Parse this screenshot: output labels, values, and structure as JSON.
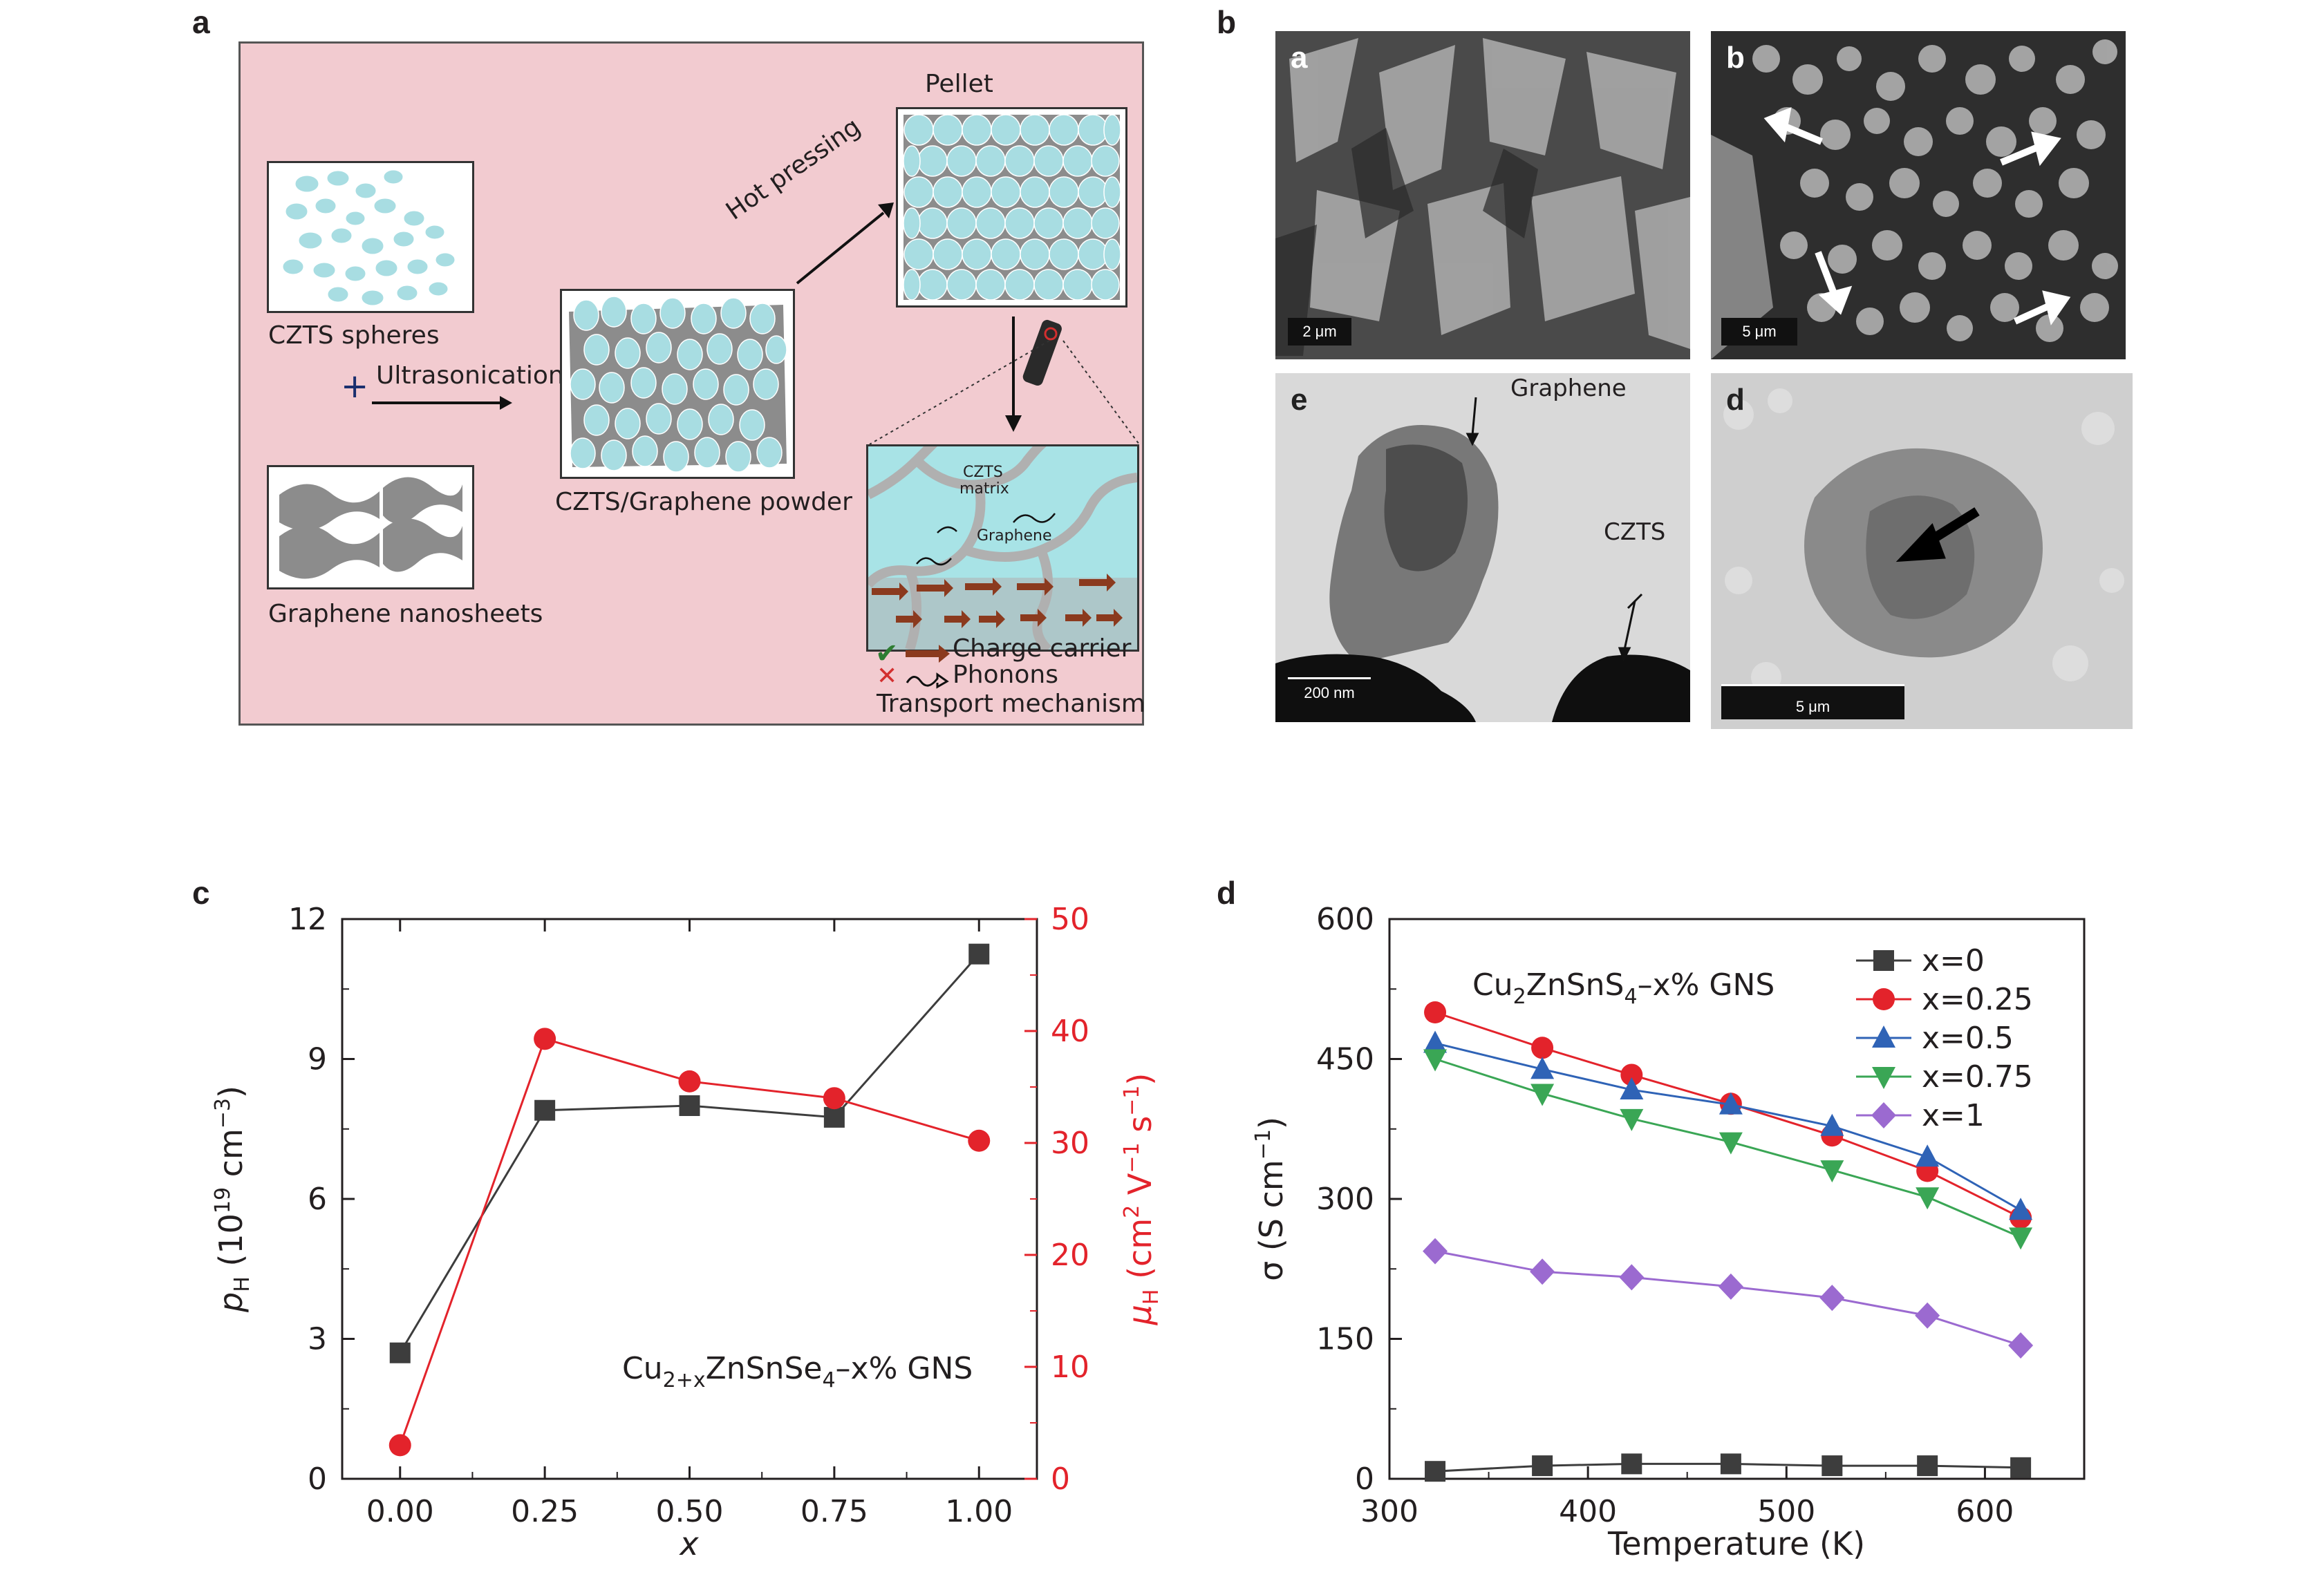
{
  "panel_letters": {
    "a": "a",
    "b": "b",
    "c": "c",
    "d": "d"
  },
  "schematic": {
    "czts_spheres": "CZTS spheres",
    "plus": "+",
    "ultrasonication": "Ultrasonication",
    "graphene_nanosheets": "Graphene nanosheets",
    "composite_powder": "CZTS/Graphene powder",
    "hot_pressing": "Hot pressing",
    "pellet": "Pellet",
    "czts_matrix_line1": "CZTS",
    "czts_matrix_line2": "matrix",
    "graphene_label": "Graphene",
    "charge_carrier": "Charge carrier",
    "phonons": "Phonons",
    "transport_mechanism": "Transport mechanism",
    "colors": {
      "background": "#f2cbd0",
      "sphere": "#a8dde2",
      "graphene": "#8c8c8c",
      "arrow": "#8b3a1e",
      "check": "#2e7d32",
      "cross": "#d32f2f"
    }
  },
  "micrographs": {
    "a": {
      "letter": "a",
      "scale": "2 μm"
    },
    "b": {
      "letter": "b",
      "scale": "5 μm"
    },
    "e": {
      "letter": "e",
      "scale": "200 nm",
      "label_graphene": "Graphene",
      "label_czts": "CZTS"
    },
    "d": {
      "letter": "d",
      "scale": "5 μm"
    }
  },
  "chart_data": [
    {
      "type": "line",
      "panel": "c",
      "x": [
        0.0,
        0.25,
        0.5,
        0.75,
        1.0
      ],
      "xtick_labels": [
        "0.00",
        "0.25",
        "0.50",
        "0.75",
        "1.00"
      ],
      "xlabel": "x",
      "xlim": [
        -0.1,
        1.1
      ],
      "ylabel_left": "pH (10¹⁹ cm⁻³)",
      "ylabel_right": "μH (cm² V⁻¹ s⁻¹)",
      "ylim_left": [
        0,
        12
      ],
      "ylim_right": [
        0,
        50
      ],
      "yticks_left": [
        "0",
        "3",
        "6",
        "9",
        "12"
      ],
      "yticks_right": [
        "0",
        "10",
        "20",
        "30",
        "40",
        "50"
      ],
      "annotation": "Cu2+xZnSnSe4–x% GNS",
      "series": [
        {
          "axis": "left",
          "marker": "square",
          "color": "#3d3d3d",
          "values": [
            2.7,
            7.9,
            8.0,
            7.75,
            11.25
          ]
        },
        {
          "axis": "right",
          "marker": "circle",
          "color": "#e3232b",
          "values": [
            3.0,
            39.3,
            35.5,
            34.0,
            30.2
          ]
        }
      ],
      "grid": false
    },
    {
      "type": "line",
      "panel": "d",
      "x": [
        323,
        377,
        422,
        472,
        523,
        571,
        618
      ],
      "xlabel": "Temperature (K)",
      "ylabel": "σ (S cm⁻¹)",
      "xlim": [
        300,
        650
      ],
      "ylim": [
        0,
        600
      ],
      "xticks": [
        "300",
        "400",
        "500",
        "600"
      ],
      "yticks": [
        "0",
        "150",
        "300",
        "450",
        "600"
      ],
      "annotation": "Cu2ZnSnS4–x% GNS",
      "legend_position": "top-right",
      "series": [
        {
          "name": "x=0",
          "marker": "square",
          "color": "#3d3d3d",
          "values": [
            8,
            14,
            16,
            16,
            14,
            14,
            12
          ]
        },
        {
          "name": "x=0.25",
          "marker": "circle",
          "color": "#e3232b",
          "values": [
            500,
            462,
            433,
            402,
            368,
            330,
            280
          ]
        },
        {
          "name": "x=0.5",
          "marker": "triangle-up",
          "color": "#2f63b6",
          "values": [
            467,
            439,
            417,
            401,
            378,
            345,
            288
          ]
        },
        {
          "name": "x=0.75",
          "marker": "triangle-down",
          "color": "#3aa655",
          "values": [
            450,
            413,
            386,
            361,
            331,
            302,
            259
          ]
        },
        {
          "name": "x=1",
          "marker": "diamond",
          "color": "#9b6ad0",
          "values": [
            244,
            222,
            216,
            206,
            194,
            175,
            143
          ]
        }
      ],
      "grid": false
    }
  ]
}
